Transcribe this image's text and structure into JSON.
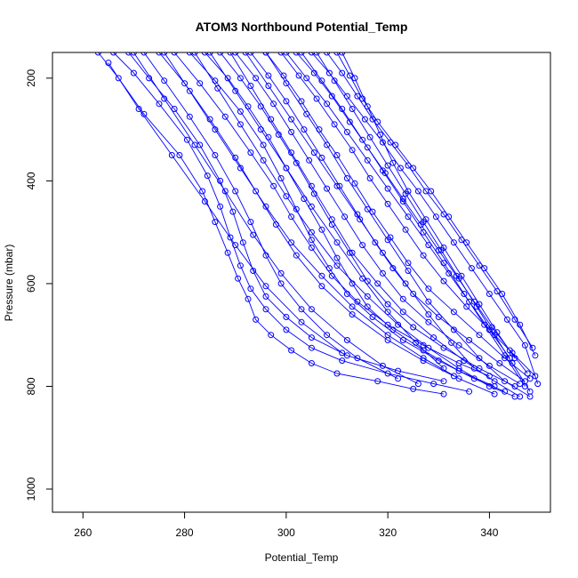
{
  "chart_data": {
    "type": "line",
    "title": "ATOM3 Northbound Potential_Temp",
    "xlabel": "Potential_Temp",
    "ylabel": "Pressure (mbar)",
    "xlim": [
      254,
      352
    ],
    "ylim": [
      1045,
      150
    ],
    "y_reversed": true,
    "xticks": [
      260,
      280,
      300,
      320,
      340
    ],
    "yticks": [
      200,
      400,
      600,
      800,
      1000
    ],
    "grid": false,
    "legend": "none",
    "series_color": "#0000ff",
    "marker": "open-circle",
    "series": [
      {
        "x": [
          263.0,
          267.0,
          272.0,
          279.0,
          283.5,
          286.0,
          288.5,
          290.5,
          292.5,
          294.0,
          297.0,
          301.0,
          305.0,
          310.0,
          318.0,
          325.0,
          331.0
        ],
        "y": [
          150,
          200,
          270,
          350,
          420,
          480,
          540,
          590,
          630,
          670,
          700,
          730,
          755,
          775,
          790,
          805,
          815
        ]
      },
      {
        "x": [
          266.0,
          270.0,
          275.0,
          280.5,
          284.5,
          287.0,
          289.0,
          291.0,
          293.0,
          296.0,
          300.0,
          305.0,
          311.0,
          320.0,
          329.0,
          336.0
        ],
        "y": [
          150,
          190,
          250,
          320,
          390,
          450,
          510,
          565,
          610,
          650,
          690,
          725,
          750,
          775,
          795,
          810
        ]
      },
      {
        "x": [
          269.0,
          273.0,
          278.0,
          283.0,
          287.0,
          289.5,
          291.5,
          293.5,
          296.0,
          300.0,
          305.0,
          312.0,
          322.0,
          331.0
        ],
        "y": [
          150,
          200,
          260,
          330,
          400,
          460,
          520,
          575,
          625,
          665,
          705,
          740,
          770,
          790
        ]
      },
      {
        "x": [
          272.0,
          276.0,
          281.0,
          286.0,
          290.0,
          293.0,
          296.0,
          299.0,
          303.0,
          308.0,
          314.0,
          322.0
        ],
        "y": [
          150,
          205,
          275,
          350,
          420,
          480,
          545,
          600,
          650,
          700,
          745,
          785
        ]
      },
      {
        "x": [
          275.0,
          280.0,
          285.0,
          290.0,
          294.0,
          298.0,
          302.0,
          307.0,
          313.0,
          320.0,
          327.0,
          333.0
        ],
        "y": [
          150,
          210,
          280,
          355,
          420,
          485,
          545,
          605,
          660,
          710,
          750,
          780
        ]
      },
      {
        "x": [
          278.0,
          283.0,
          288.0,
          293.0,
          297.5,
          301.0,
          305.0,
          309.0,
          314.0,
          320.0,
          327.0,
          334.0,
          340.0
        ],
        "y": [
          150,
          210,
          275,
          345,
          410,
          470,
          530,
          585,
          635,
          680,
          720,
          755,
          780
        ]
      },
      {
        "x": [
          281.0,
          286.0,
          291.0,
          295.5,
          299.0,
          302.0,
          305.0,
          308.5,
          312.0,
          317.0,
          323.0,
          330.0,
          337.0,
          343.0
        ],
        "y": [
          150,
          205,
          265,
          330,
          395,
          455,
          515,
          570,
          620,
          665,
          710,
          750,
          785,
          810
        ]
      },
      {
        "x": [
          284.0,
          288.5,
          292.5,
          296.5,
          300.0,
          303.5,
          307.0,
          310.0,
          313.0,
          316.0,
          321.0,
          327.0,
          334.0,
          341.0
        ],
        "y": [
          150,
          200,
          255,
          315,
          375,
          435,
          495,
          550,
          600,
          645,
          690,
          730,
          770,
          800
        ]
      },
      {
        "x": [
          287.0,
          291.0,
          295.0,
          298.5,
          302.0,
          305.5,
          309.0,
          312.5,
          316.0,
          320.0,
          325.0,
          331.0,
          338.0,
          345.0
        ],
        "y": [
          150,
          200,
          255,
          310,
          365,
          425,
          485,
          540,
          595,
          640,
          685,
          725,
          765,
          800
        ]
      },
      {
        "x": [
          290.0,
          294.0,
          297.5,
          301.0,
          304.5,
          308.0,
          311.5,
          315.0,
          319.0,
          323.0,
          328.0,
          334.0,
          340.0,
          346.0
        ],
        "y": [
          150,
          200,
          250,
          305,
          360,
          415,
          470,
          525,
          580,
          630,
          675,
          720,
          760,
          795
        ]
      },
      {
        "x": [
          293.0,
          296.5,
          300.0,
          303.5,
          307.0,
          310.5,
          314.0,
          317.5,
          321.0,
          325.0,
          330.0,
          336.0,
          342.0,
          347.0
        ],
        "y": [
          150,
          195,
          245,
          300,
          355,
          410,
          465,
          520,
          570,
          620,
          665,
          710,
          755,
          790
        ]
      },
      {
        "x": [
          296.0,
          299.5,
          303.0,
          306.5,
          310.0,
          313.5,
          317.0,
          320.5,
          324.0,
          328.0,
          333.0,
          338.0,
          343.0,
          348.0
        ],
        "y": [
          150,
          195,
          245,
          300,
          350,
          405,
          460,
          510,
          560,
          610,
          655,
          700,
          745,
          785
        ]
      },
      {
        "x": [
          299.0,
          302.5,
          306.0,
          309.5,
          313.0,
          316.5,
          320.0,
          323.5,
          327.0,
          331.0,
          335.5,
          340.0,
          344.5,
          349.0
        ],
        "y": [
          150,
          195,
          240,
          290,
          340,
          395,
          445,
          495,
          545,
          595,
          645,
          690,
          735,
          780
        ]
      },
      {
        "x": [
          302.0,
          305.5,
          309.0,
          312.5,
          316.0,
          319.5,
          323.0,
          326.5,
          330.0,
          333.5,
          337.0,
          340.5,
          344.0,
          347.5
        ],
        "y": [
          150,
          190,
          235,
          285,
          335,
          385,
          435,
          485,
          535,
          585,
          635,
          685,
          730,
          775
        ]
      },
      {
        "x": [
          305.0,
          308.5,
          312.0,
          315.5,
          319.0,
          322.5,
          326.0,
          329.5,
          333.0,
          336.5,
          340.0,
          343.5,
          347.0,
          349.5
        ],
        "y": [
          150,
          190,
          235,
          280,
          325,
          375,
          420,
          470,
          520,
          570,
          620,
          670,
          720,
          795
        ]
      },
      {
        "x": [
          308.0,
          311.0,
          314.0,
          317.0,
          320.5,
          324.0,
          327.5,
          331.0,
          334.5,
          338.0,
          341.5,
          345.0,
          348.5
        ],
        "y": [
          150,
          190,
          235,
          280,
          325,
          370,
          420,
          465,
          515,
          565,
          615,
          670,
          725
        ]
      },
      {
        "x": [
          310.0,
          312.5,
          315.0,
          318.0,
          321.5,
          325.0,
          328.5,
          332.0,
          335.5,
          339.0,
          342.5,
          346.0,
          349.0
        ],
        "y": [
          150,
          195,
          240,
          285,
          330,
          375,
          420,
          470,
          520,
          570,
          620,
          680,
          740
        ]
      },
      {
        "x": [
          303.0,
          307.0,
          311.0,
          315.0,
          319.0,
          323.0,
          327.0,
          331.0,
          335.0,
          339.0,
          343.0,
          347.0
        ],
        "y": [
          150,
          205,
          260,
          320,
          380,
          440,
          500,
          560,
          620,
          680,
          740,
          800
        ]
      },
      {
        "x": [
          296.0,
          300.0,
          304.0,
          308.0,
          312.0,
          316.0,
          320.0,
          324.0,
          328.0,
          333.0,
          338.0,
          343.0,
          348.0
        ],
        "y": [
          150,
          210,
          270,
          330,
          395,
          455,
          515,
          575,
          635,
          690,
          745,
          790,
          820
        ]
      },
      {
        "x": [
          289.0,
          293.0,
          297.0,
          301.0,
          305.0,
          309.0,
          313.0,
          318.0,
          323.0,
          329.0,
          335.0,
          341.0,
          346.0
        ],
        "y": [
          150,
          215,
          280,
          345,
          410,
          475,
          540,
          600,
          655,
          705,
          750,
          790,
          820
        ]
      },
      {
        "x": [
          282.0,
          286.5,
          291.0,
          295.5,
          300.0,
          305.0,
          310.0,
          316.0,
          322.0,
          328.0,
          334.0,
          340.0,
          345.0
        ],
        "y": [
          150,
          220,
          290,
          360,
          430,
          500,
          565,
          625,
          680,
          725,
          765,
          800,
          820
        ]
      },
      {
        "x": [
          276.0,
          281.0,
          286.0,
          291.0,
          296.0,
          301.0,
          307.0,
          313.0,
          320.0,
          327.0,
          334.0,
          341.0
        ],
        "y": [
          150,
          225,
          300,
          375,
          450,
          520,
          585,
          645,
          700,
          745,
          785,
          815
        ]
      },
      {
        "x": [
          270.0,
          276.0,
          282.0,
          288.0,
          293.5,
          299.0,
          305.0,
          312.0,
          319.0,
          326.0
        ],
        "y": [
          150,
          240,
          330,
          420,
          505,
          580,
          650,
          710,
          760,
          795
        ]
      },
      {
        "x": [
          265.0,
          271.0,
          277.5,
          284.0,
          290.0,
          296.0,
          303.0,
          311.0
        ],
        "y": [
          170,
          260,
          350,
          440,
          525,
          605,
          675,
          735
        ]
      },
      {
        "x": [
          311.0,
          313.5,
          316.0,
          318.5,
          321.0,
          324.0,
          327.5,
          331.0,
          334.5,
          338.0,
          341.5,
          345.0
        ],
        "y": [
          150,
          200,
          255,
          310,
          365,
          420,
          475,
          530,
          585,
          640,
          695,
          745
        ]
      },
      {
        "x": [
          306.0,
          309.5,
          313.0,
          316.5,
          320.0,
          323.5,
          327.0,
          330.5,
          334.0,
          337.5,
          341.0,
          344.5,
          348.0
        ],
        "y": [
          150,
          205,
          260,
          315,
          370,
          425,
          480,
          535,
          590,
          645,
          700,
          755,
          810
        ]
      },
      {
        "x": [
          300.0,
          304.0,
          308.0,
          312.0,
          316.0,
          320.0,
          324.0,
          328.0,
          332.0,
          336.0,
          340.0,
          344.0
        ],
        "y": [
          150,
          200,
          250,
          305,
          360,
          415,
          470,
          525,
          580,
          635,
          690,
          745
        ]
      },
      {
        "x": [
          292.0,
          296.5,
          301.0,
          305.5,
          310.0,
          314.5,
          319.0,
          323.5,
          328.0,
          332.5,
          337.0
        ],
        "y": [
          150,
          215,
          280,
          345,
          410,
          475,
          540,
          600,
          660,
          715,
          765
        ]
      },
      {
        "x": [
          285.0,
          290.0,
          295.0,
          300.0,
          305.0,
          310.0,
          315.0,
          320.0,
          325.5,
          331.0
        ],
        "y": [
          150,
          225,
          300,
          375,
          450,
          520,
          590,
          655,
          715,
          765
        ]
      }
    ]
  }
}
